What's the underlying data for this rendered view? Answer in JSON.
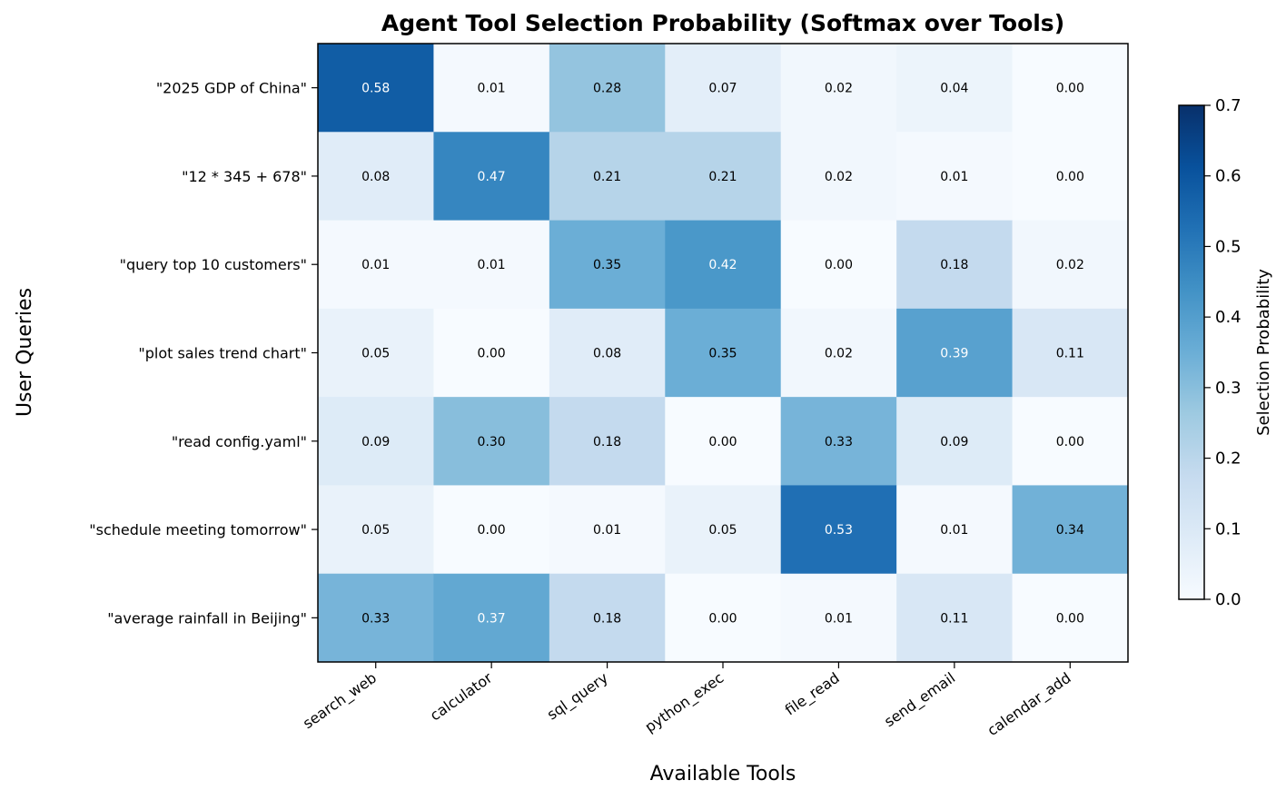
{
  "chart_data": {
    "type": "heatmap",
    "title": "Agent Tool Selection Probability (Softmax over Tools)",
    "xlabel": "Available Tools",
    "ylabel": "User Queries",
    "x_categories": [
      "search_web",
      "calculator",
      "sql_query",
      "python_exec",
      "file_read",
      "send_email",
      "calendar_add"
    ],
    "y_categories": [
      "\"2025 GDP of China\"",
      "\"12 * 345 + 678\"",
      "\"query top 10 customers\"",
      "\"plot sales trend chart\"",
      "\"read config.yaml\"",
      "\"schedule meeting tomorrow\"",
      "\"average rainfall in Beijing\""
    ],
    "values": [
      [
        0.58,
        0.01,
        0.28,
        0.07,
        0.02,
        0.04,
        0.0
      ],
      [
        0.08,
        0.47,
        0.21,
        0.21,
        0.02,
        0.01,
        0.0
      ],
      [
        0.01,
        0.01,
        0.35,
        0.42,
        0.0,
        0.18,
        0.02
      ],
      [
        0.05,
        0.0,
        0.08,
        0.35,
        0.02,
        0.39,
        0.11
      ],
      [
        0.09,
        0.3,
        0.18,
        0.0,
        0.33,
        0.09,
        0.0
      ],
      [
        0.05,
        0.0,
        0.01,
        0.05,
        0.53,
        0.01,
        0.34
      ],
      [
        0.33,
        0.37,
        0.18,
        0.0,
        0.01,
        0.11,
        0.0
      ]
    ],
    "value_labels": [
      [
        "0.58",
        "0.01",
        "0.28",
        "0.07",
        "0.02",
        "0.04",
        "0.00"
      ],
      [
        "0.08",
        "0.47",
        "0.21",
        "0.21",
        "0.02",
        "0.01",
        "0.00"
      ],
      [
        "0.01",
        "0.01",
        "0.35",
        "0.42",
        "0.00",
        "0.18",
        "0.02"
      ],
      [
        "0.05",
        "0.00",
        "0.08",
        "0.35",
        "0.02",
        "0.39",
        "0.11"
      ],
      [
        "0.09",
        "0.30",
        "0.18",
        "0.00",
        "0.33",
        "0.09",
        "0.00"
      ],
      [
        "0.05",
        "0.00",
        "0.01",
        "0.05",
        "0.53",
        "0.01",
        "0.34"
      ],
      [
        "0.33",
        "0.37",
        "0.18",
        "0.00",
        "0.01",
        "0.11",
        "0.00"
      ]
    ],
    "colormap": "Blues",
    "colorbar": {
      "label": "Selection Probability",
      "range": [
        0,
        0.7
      ],
      "ticks": [
        0.0,
        0.1,
        0.2,
        0.3,
        0.4,
        0.5,
        0.6,
        0.7
      ],
      "tick_labels": [
        "0.0",
        "0.1",
        "0.2",
        "0.3",
        "0.4",
        "0.5",
        "0.6",
        "0.7"
      ]
    },
    "colors": {
      "low": "#f7fbff",
      "high": "#08306b",
      "text_dark": "#000000",
      "text_light": "#ffffff"
    },
    "grid": false
  }
}
